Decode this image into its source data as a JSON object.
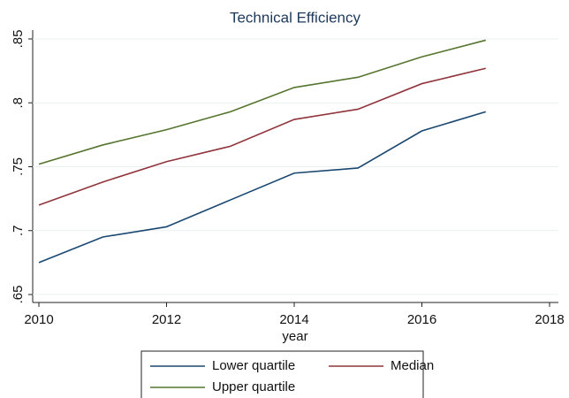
{
  "chart_data": {
    "type": "line",
    "title": "Technical Efficiency",
    "x_label": "year",
    "x": [
      2010,
      2011,
      2012,
      2013,
      2014,
      2015,
      2016,
      2017
    ],
    "xlim": [
      2010,
      2018
    ],
    "xticks": [
      2010,
      2012,
      2014,
      2016,
      2018
    ],
    "ylim": [
      0.65,
      0.85
    ],
    "yticks": [
      {
        "value": 0.65,
        "label": ".65"
      },
      {
        "value": 0.7,
        "label": ".7"
      },
      {
        "value": 0.75,
        "label": ".75"
      },
      {
        "value": 0.8,
        "label": ".8"
      },
      {
        "value": 0.85,
        "label": ".85"
      }
    ],
    "grid": true,
    "series": [
      {
        "name": "Lower quartile",
        "color": "#1a476f",
        "values": [
          0.675,
          0.695,
          0.703,
          0.724,
          0.745,
          0.749,
          0.778,
          0.793
        ]
      },
      {
        "name": "Median",
        "color": "#90353b",
        "values": [
          0.72,
          0.738,
          0.754,
          0.766,
          0.787,
          0.795,
          0.815,
          0.827
        ]
      },
      {
        "name": "Upper quartile",
        "color": "#55752f",
        "values": [
          0.752,
          0.767,
          0.779,
          0.793,
          0.812,
          0.82,
          0.836,
          0.849
        ]
      }
    ]
  }
}
